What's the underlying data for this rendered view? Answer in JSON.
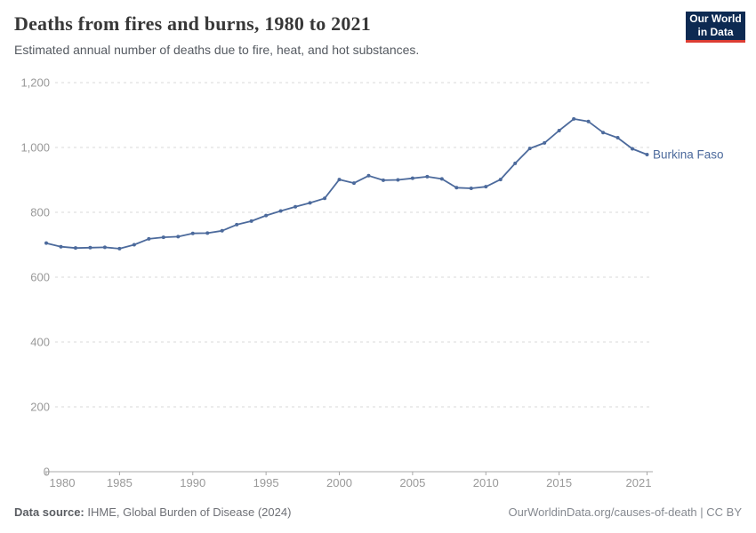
{
  "header": {
    "title": "Deaths from fires and burns, 1980 to 2021",
    "subtitle": "Estimated annual number of deaths due to fire, heat, and hot substances.",
    "logo_line1": "Our World",
    "logo_line2": "in Data"
  },
  "chart_data": {
    "type": "line",
    "title": "Deaths from fires and burns, 1980 to 2021",
    "xlabel": "",
    "ylabel": "",
    "xlim": [
      1980,
      2021
    ],
    "ylim": [
      0,
      1200
    ],
    "grid": "horizontal-dashed",
    "legend_position": "end-of-line-label",
    "xticks": [
      1980,
      1985,
      1990,
      1995,
      2000,
      2005,
      2010,
      2015,
      2021
    ],
    "yticks": [
      0,
      200,
      400,
      600,
      800,
      1000,
      1200
    ],
    "ytick_labels": [
      "0",
      "200",
      "400",
      "600",
      "800",
      "1,000",
      "1,200"
    ],
    "x": [
      1980,
      1981,
      1982,
      1983,
      1984,
      1985,
      1986,
      1987,
      1988,
      1989,
      1990,
      1991,
      1992,
      1993,
      1994,
      1995,
      1996,
      1997,
      1998,
      1999,
      2000,
      2001,
      2002,
      2003,
      2004,
      2005,
      2006,
      2007,
      2008,
      2009,
      2010,
      2011,
      2012,
      2013,
      2014,
      2015,
      2016,
      2017,
      2018,
      2019,
      2020,
      2021
    ],
    "series": [
      {
        "name": "Burkina Faso",
        "color": "#4c6a9c",
        "values": [
          705,
          694,
          690,
          691,
          692,
          688,
          700,
          718,
          723,
          725,
          735,
          736,
          743,
          762,
          773,
          790,
          804,
          817,
          829,
          843,
          901,
          890,
          913,
          899,
          900,
          905,
          910,
          903,
          876,
          874,
          879,
          901,
          951,
          997,
          1014,
          1052,
          1088,
          1080,
          1046,
          1030,
          996,
          978
        ]
      }
    ]
  },
  "footer": {
    "source_label": "Data source:",
    "source_text": " IHME, Global Burden of Disease (2024)",
    "link_text": "OurWorldinData.org/causes-of-death | CC BY"
  },
  "colors": {
    "line": "#4c6a9c",
    "grid": "#d9d9d9",
    "axis": "#a8a8a8",
    "tick_label": "#999999",
    "title": "#383838",
    "subtitle": "#555a61",
    "logo_bg": "#0d2a52",
    "logo_accent": "#dc3d33"
  }
}
